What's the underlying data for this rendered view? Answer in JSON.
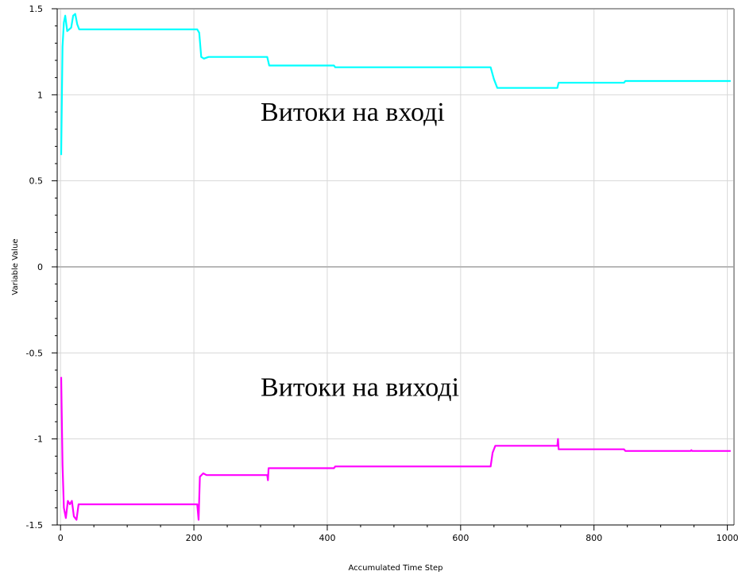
{
  "chart_data": {
    "type": "line",
    "title": "",
    "xlabel": "Accumulated Time Step",
    "ylabel": "Variable Value",
    "xlim": [
      -5,
      1010
    ],
    "ylim": [
      -1.5,
      1.5
    ],
    "x_ticks": [
      0,
      200,
      400,
      600,
      800,
      1000
    ],
    "x_tick_labels": [
      "0",
      "200",
      "400",
      "600",
      "800",
      "1000"
    ],
    "x_minor_step": 50,
    "y_ticks": [
      1.5,
      1,
      0.5,
      0,
      -0.5,
      -1,
      -1.5
    ],
    "y_tick_labels": [
      "1.5",
      "1",
      "0.5",
      "0",
      "-0.5",
      "-1",
      "-1.5"
    ],
    "y_minor_step": 0.1,
    "grid": true,
    "legend": "none",
    "annotations": [
      {
        "text": "Витоки на вході",
        "x": 300,
        "y": 0.85
      },
      {
        "text": "Витоки на виході",
        "x": 300,
        "y": -0.75
      }
    ],
    "series": [
      {
        "color": "#00ffff",
        "points": [
          [
            1,
            0.65
          ],
          [
            3,
            1.28
          ],
          [
            5,
            1.42
          ],
          [
            7,
            1.46
          ],
          [
            10,
            1.37
          ],
          [
            13,
            1.38
          ],
          [
            16,
            1.39
          ],
          [
            19,
            1.46
          ],
          [
            22,
            1.47
          ],
          [
            25,
            1.41
          ],
          [
            28,
            1.38
          ],
          [
            205,
            1.38
          ],
          [
            208,
            1.36
          ],
          [
            211,
            1.22
          ],
          [
            215,
            1.21
          ],
          [
            222,
            1.22
          ],
          [
            310,
            1.22
          ],
          [
            313,
            1.17
          ],
          [
            410,
            1.17
          ],
          [
            412,
            1.16
          ],
          [
            645,
            1.16
          ],
          [
            650,
            1.09
          ],
          [
            655,
            1.04
          ],
          [
            745,
            1.04
          ],
          [
            747,
            1.07
          ],
          [
            845,
            1.07
          ],
          [
            847,
            1.08
          ],
          [
            1005,
            1.08
          ]
        ]
      },
      {
        "color": "#ff00ff",
        "points": [
          [
            1,
            -0.64
          ],
          [
            3,
            -1.15
          ],
          [
            5,
            -1.4
          ],
          [
            8,
            -1.46
          ],
          [
            11,
            -1.36
          ],
          [
            14,
            -1.38
          ],
          [
            17,
            -1.36
          ],
          [
            20,
            -1.45
          ],
          [
            24,
            -1.47
          ],
          [
            27,
            -1.38
          ],
          [
            205,
            -1.38
          ],
          [
            207,
            -1.47
          ],
          [
            209,
            -1.22
          ],
          [
            214,
            -1.2
          ],
          [
            219,
            -1.21
          ],
          [
            310,
            -1.21
          ],
          [
            311,
            -1.24
          ],
          [
            312,
            -1.17
          ],
          [
            410,
            -1.17
          ],
          [
            412,
            -1.16
          ],
          [
            645,
            -1.16
          ],
          [
            648,
            -1.08
          ],
          [
            652,
            -1.04
          ],
          [
            745,
            -1.04
          ],
          [
            746,
            -1.0
          ],
          [
            747,
            -1.06
          ],
          [
            845,
            -1.06
          ],
          [
            847,
            -1.07
          ],
          [
            945,
            -1.07
          ],
          [
            946,
            -1.065
          ],
          [
            947,
            -1.07
          ],
          [
            1005,
            -1.07
          ]
        ]
      }
    ]
  }
}
